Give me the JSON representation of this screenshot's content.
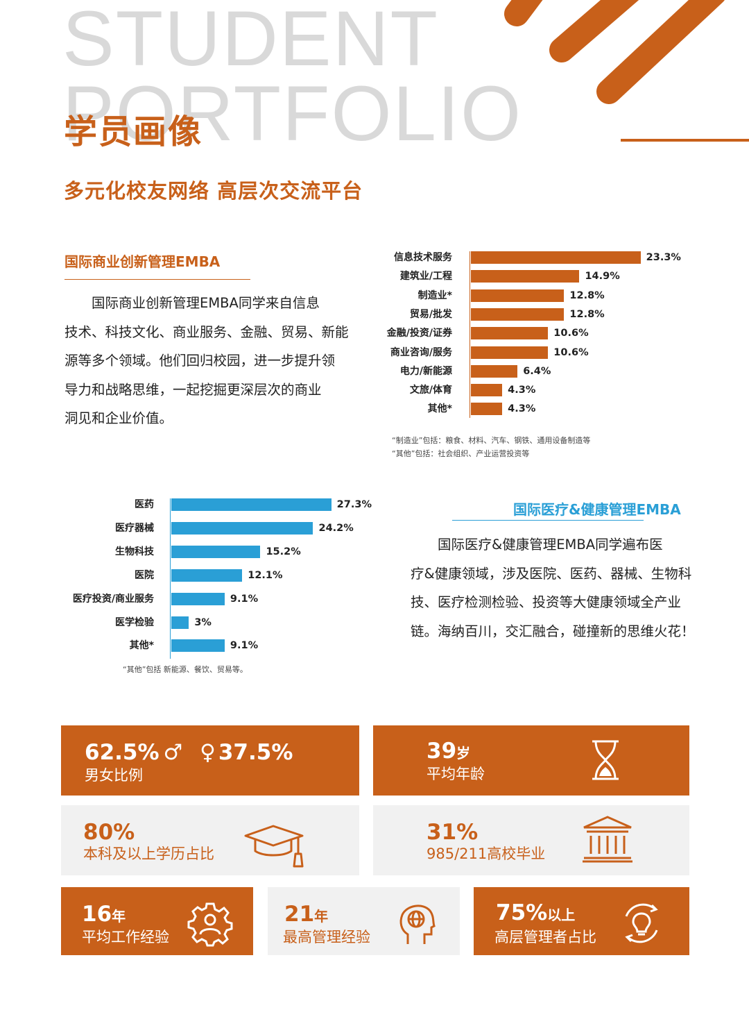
{
  "header": {
    "bg_word_1": "STUDENT",
    "bg_word_2": "PORTFOLIO",
    "title": "学员画像",
    "subtitle": "多元化校友网络 高层次交流平台"
  },
  "colors": {
    "brand_orange": "#c8601a",
    "brand_blue": "#2a9fd6",
    "card_grey": "#f1f1f1"
  },
  "section_emba": {
    "title": "国际商业创新管理EMBA",
    "lines": [
      "　　国际商业创新管理EMBA同学来自信息",
      "技术、科技文化、商业服务、金融、贸易、新能",
      "源等多个领域。他们回归校园，进一步提升领",
      "导力和战略思维，一起挖掘更深层次的商业",
      "洞见和企业价值。"
    ]
  },
  "section_health": {
    "title": "国际医疗&健康管理EMBA",
    "lines": [
      "　　国际医疗&健康管理EMBA同学遍布医",
      "疗&健康领域，涉及医院、医药、器械、生物科",
      "技、医疗检测检验、投资等大健康领域全产业",
      "链。海纳百川，交汇融合，碰撞新的思维火花！"
    ]
  },
  "chart_data": [
    {
      "type": "bar",
      "orientation": "horizontal",
      "color": "#c8601a",
      "categories": [
        "信息技术服务",
        "建筑业/工程",
        "制造业*",
        "贸易/批发",
        "金融/投资/证券",
        "商业咨询/服务",
        "电力/新能源",
        "文旅/体育",
        "其他*"
      ],
      "values": [
        23.3,
        14.9,
        12.8,
        12.8,
        10.6,
        10.6,
        6.4,
        4.3,
        4.3
      ],
      "value_labels": [
        "23.3%",
        "14.9%",
        "12.8%",
        "12.8%",
        "10.6%",
        "10.6%",
        "6.4%",
        "4.3%",
        "4.3%"
      ],
      "notes": [
        "“制造业”包括：粮食、材料、汽车、钢铁、通用设备制造等",
        "“其他”包括：社会组织、产业运营投资等"
      ]
    },
    {
      "type": "bar",
      "orientation": "horizontal",
      "color": "#2a9fd6",
      "categories": [
        "医药",
        "医疗器械",
        "生物科技",
        "医院",
        "医疗投资/商业服务",
        "医学检验",
        "其他*"
      ],
      "values": [
        27.3,
        24.2,
        15.2,
        12.1,
        9.1,
        3,
        9.1
      ],
      "value_labels": [
        "27.3%",
        "24.2%",
        "15.2%",
        "12.1%",
        "9.1%",
        "3%",
        "9.1%"
      ],
      "notes": [
        "“其他”包括 新能源、餐饮、贸易等。"
      ]
    }
  ],
  "stats": {
    "gender": {
      "male": "62.5%",
      "female": "37.5%",
      "male_symbol": "♂",
      "female_symbol": "♀",
      "label": "男女比例"
    },
    "age": {
      "value": "39",
      "unit": "岁",
      "label": "平均年龄",
      "icon": "hourglass-icon"
    },
    "degree": {
      "value": "80%",
      "label": "本科及以上学历占比",
      "icon": "graduation-cap-icon"
    },
    "university": {
      "value": "31%",
      "label": "985/211高校毕业",
      "icon": "university-building-icon"
    },
    "work": {
      "value": "16",
      "unit": "年",
      "label": "平均工作经验",
      "icon": "gear-person-icon"
    },
    "management": {
      "value": "21",
      "unit": "年",
      "label": "最高管理经验",
      "icon": "head-globe-icon"
    },
    "senior": {
      "value": "75%",
      "unit": "以上",
      "label": "高层管理者占比",
      "icon": "lightbulb-cycle-icon"
    }
  }
}
